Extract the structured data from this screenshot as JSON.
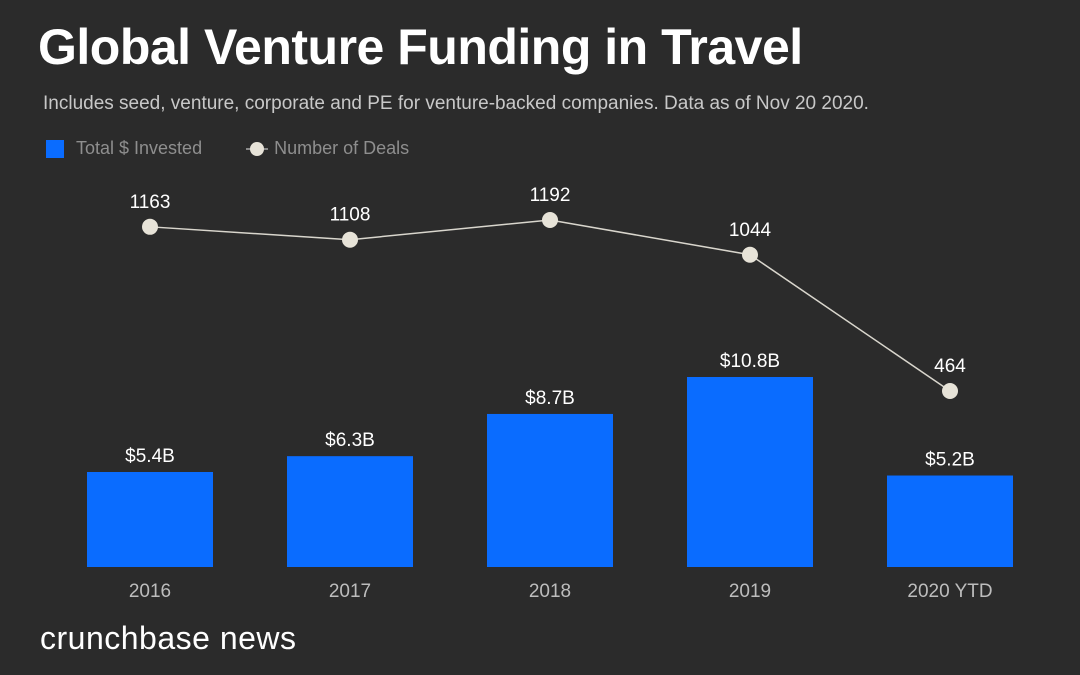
{
  "title": "Global Venture Funding in Travel",
  "subtitle": "Includes seed, venture, corporate and PE for venture-backed companies. Data as of Nov 20 2020.",
  "brand": "crunchbase news",
  "colors": {
    "bar": "#0a6cff",
    "line": "#e7e3d8",
    "text": "#ffffff",
    "tick": "#bdbdbd"
  },
  "chart_data": {
    "type": "bar",
    "title": "Global Venture Funding in Travel",
    "xlabel": "",
    "ylabel": "",
    "categories": [
      "2016",
      "2017",
      "2018",
      "2019",
      "2020 YTD"
    ],
    "legend": [
      "Total $ Invested",
      "Number of Deals"
    ],
    "series": [
      {
        "name": "Total $ Invested",
        "type": "bar",
        "unit": "B USD",
        "values": [
          5.4,
          6.3,
          8.7,
          10.8,
          5.2
        ],
        "labels": [
          "$5.4B",
          "$6.3B",
          "$8.7B",
          "$10.8B",
          "$5.2B"
        ]
      },
      {
        "name": "Number of Deals",
        "type": "line",
        "values": [
          1163,
          1108,
          1192,
          1044,
          464
        ],
        "labels": [
          "1163",
          "1108",
          "1192",
          "1044",
          "464"
        ]
      }
    ],
    "grid": false
  }
}
